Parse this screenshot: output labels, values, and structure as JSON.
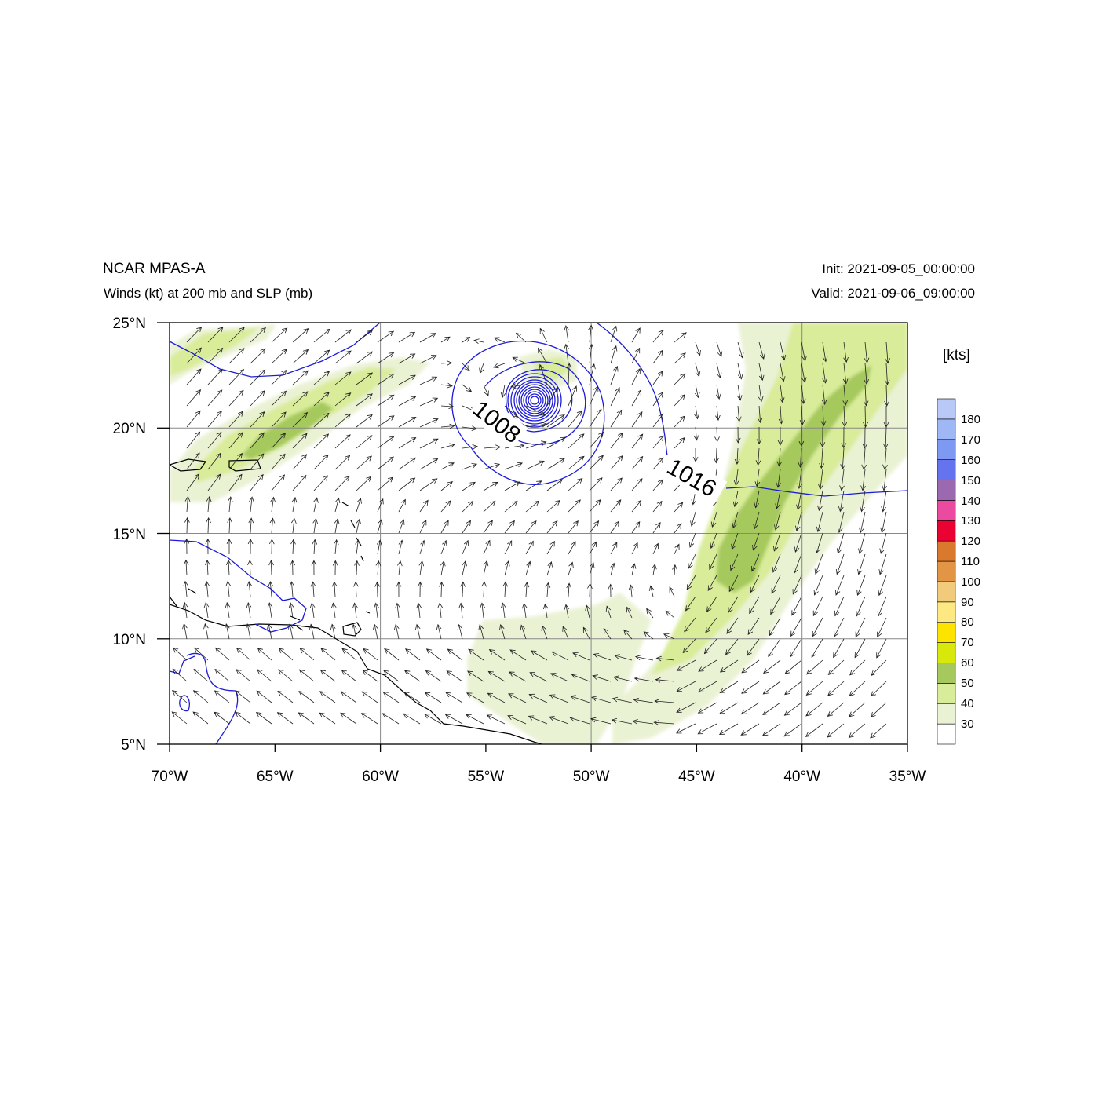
{
  "header": {
    "title": "NCAR MPAS-A",
    "subtitle": "Winds (kt) at 200 mb and SLP (mb)",
    "init": "Init: 2021-09-05_00:00:00",
    "valid": "Valid: 2021-09-06_09:00:00"
  },
  "map": {
    "lon_range": [
      -70,
      -35
    ],
    "lat_range": [
      5,
      25
    ],
    "x_ticks": [
      "70°W",
      "65°W",
      "60°W",
      "55°W",
      "50°W",
      "45°W",
      "40°W",
      "35°W"
    ],
    "y_ticks": [
      "5°N",
      "10°N",
      "15°N",
      "20°N",
      "25°N"
    ],
    "grid": true,
    "coastline_color": "#000000",
    "slp_contour_color": "#1c1cd8",
    "slp_contour_labels": [
      "1008",
      "1016"
    ],
    "low_center": {
      "lon": -52.6,
      "lat": 21.3
    }
  },
  "colorbar": {
    "title": "[kts]",
    "labels": [
      "30",
      "40",
      "50",
      "60",
      "70",
      "80",
      "90",
      "100",
      "110",
      "120",
      "130",
      "140",
      "150",
      "160",
      "170",
      "180"
    ],
    "colors": [
      "#ffffff",
      "#eaf2d4",
      "#d9ec9a",
      "#a5c95c",
      "#d8e80a",
      "#fde400",
      "#fde881",
      "#f1cb7b",
      "#e29545",
      "#d9792e",
      "#ea0233",
      "#ea4aa0",
      "#9b69b0",
      "#6574ee",
      "#7e99f2",
      "#9fb8f5",
      "#b8c9f8"
    ]
  }
}
